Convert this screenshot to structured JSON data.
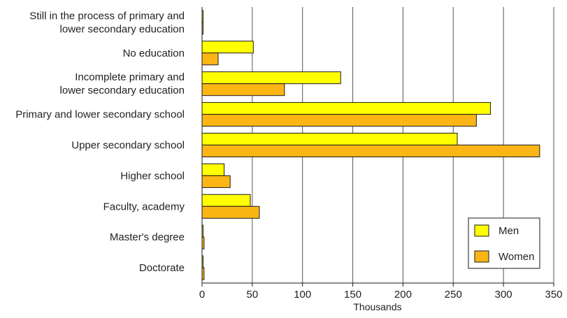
{
  "chart_data": {
    "type": "bar",
    "orientation": "horizontal",
    "categories": [
      [
        "Still in the process of primary and",
        "lower secondary education"
      ],
      [
        "No education"
      ],
      [
        "Incomplete primary and",
        "lower secondary education"
      ],
      [
        "Primary and lower secondary school"
      ],
      [
        "Upper secondary school"
      ],
      [
        "Higher school"
      ],
      [
        "Faculty, academy"
      ],
      [
        "Master's degree"
      ],
      [
        "Doctorate"
      ]
    ],
    "series": [
      {
        "name": "Men",
        "color": "#ffff00",
        "values": [
          1,
          51,
          138,
          287,
          254,
          22,
          48,
          1,
          1
        ]
      },
      {
        "name": "Women",
        "color": "#fbb615",
        "values": [
          1,
          16,
          82,
          273,
          336,
          28,
          57,
          2,
          2
        ]
      }
    ],
    "xlabel": "Thousands",
    "xlim": [
      0,
      350
    ],
    "xticks": [
      0,
      50,
      100,
      150,
      200,
      250,
      300,
      350
    ],
    "grid": "vertical",
    "legend_position": "bottom-right",
    "legend": {
      "men_label": "Men",
      "women_label": "Women"
    },
    "colors": {
      "men": "#ffff00",
      "women": "#fbb615",
      "bar_stroke": "#1a1a1a",
      "grid": "#555555"
    }
  }
}
